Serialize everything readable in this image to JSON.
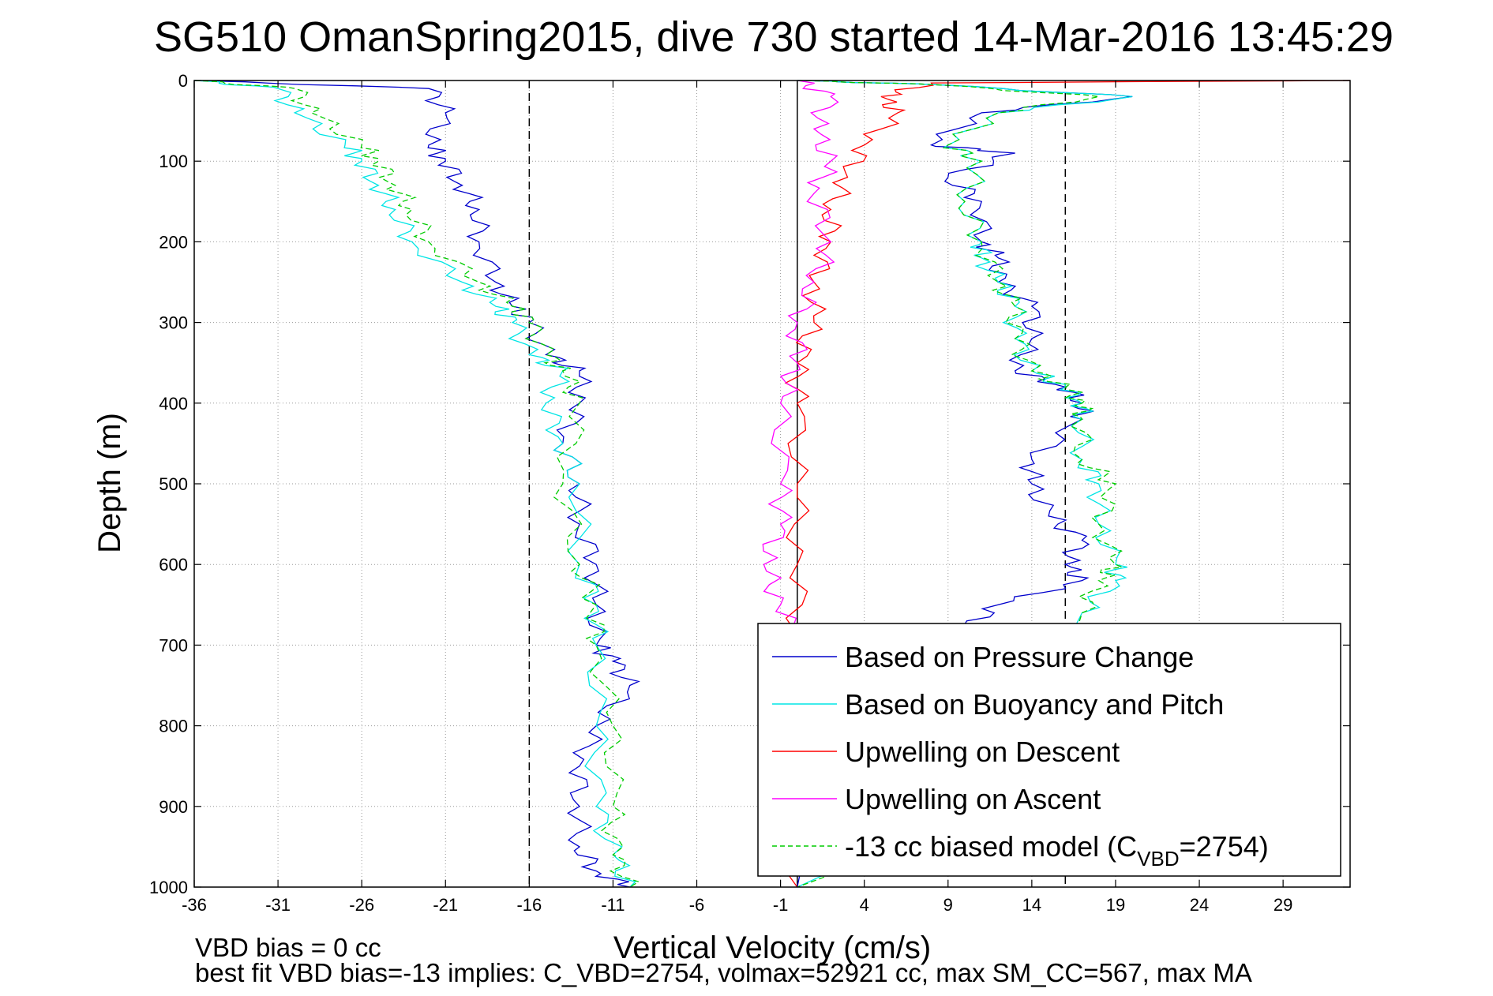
{
  "chart_data": {
    "type": "line",
    "title": "SG510 OmanSpring2015, dive 730 started 14-Mar-2016 13:45:29",
    "xlabel": "Vertical Velocity (cm/s)",
    "ylabel": "Depth (m)",
    "xlim": [
      -36,
      33
    ],
    "ylim": [
      0,
      1000
    ],
    "y_reversed": true,
    "grid": true,
    "xticks": [
      -36,
      -31,
      -26,
      -21,
      -16,
      -11,
      -6,
      -1,
      4,
      9,
      14,
      19,
      24,
      29
    ],
    "yticks": [
      0,
      100,
      200,
      300,
      400,
      500,
      600,
      700,
      800,
      900,
      1000
    ],
    "reference_lines": {
      "dashed_x": [
        -16,
        16
      ],
      "solid_x": [
        0
      ]
    },
    "legend_position": "bottom-right",
    "legend": [
      {
        "label": "Based on Pressure Change",
        "color": "#0000cc",
        "style": "solid"
      },
      {
        "label": "Based on Buoyancy and Pitch",
        "color": "#00e5e5",
        "style": "solid"
      },
      {
        "label": "Upwelling on Descent",
        "color": "#ff0000",
        "style": "solid"
      },
      {
        "label": "Upwelling on Ascent",
        "color": "#ff00ff",
        "style": "solid"
      },
      {
        "label_prefix": "-13 cc biased model (C",
        "label_sub": "VBD",
        "label_suffix": "=2754)",
        "color": "#00cc00",
        "style": "dashed"
      }
    ],
    "series": [
      {
        "name": "Based on Pressure Change",
        "color": "#0000cc",
        "branches": [
          {
            "x": [
              -36,
              -22,
              -21,
              -22,
              -21,
              -20,
              -19,
              -19,
              -18,
              -17,
              -16,
              -15,
              -13,
              -13,
              -14,
              -13,
              -13,
              -12,
              -12,
              -12,
              -11,
              -10,
              -12,
              -13,
              -13,
              -13,
              -12,
              -10
            ],
            "y": [
              0,
              10,
              40,
              80,
              100,
              130,
              160,
              200,
              250,
              280,
              300,
              340,
              360,
              400,
              450,
              500,
              550,
              600,
              650,
              700,
              720,
              750,
              800,
              850,
              900,
              950,
              980,
              1000
            ]
          },
          {
            "x": [
              0,
              8,
              20,
              11,
              8,
              13,
              9,
              11,
              11,
              12,
              12,
              14,
              14,
              13,
              16,
              17,
              17,
              14,
              14,
              15,
              17,
              16,
              17,
              12,
              10,
              5,
              0
            ],
            "y": [
              0,
              5,
              20,
              40,
              80,
              90,
              120,
              150,
              200,
              220,
              250,
              280,
              320,
              360,
              380,
              400,
              420,
              470,
              500,
              540,
              570,
              600,
              620,
              650,
              680,
              900,
              1000
            ]
          }
        ]
      },
      {
        "name": "Based on Buoyancy and Pitch",
        "color": "#00e5e5",
        "branches": [
          {
            "x": [
              -36,
              -31,
              -30,
              -27,
              -26,
              -25,
              -24,
              -23,
              -20,
              -18,
              -17,
              -16,
              -14,
              -15,
              -14,
              -13,
              -13,
              -12,
              -12,
              -12,
              -12,
              -11,
              -10
            ],
            "y": [
              0,
              10,
              40,
              80,
              100,
              130,
              160,
              200,
              250,
              280,
              300,
              340,
              360,
              400,
              450,
              500,
              600,
              650,
              700,
              800,
              900,
              960,
              1000
            ]
          },
          {
            "x": [
              0,
              8,
              20,
              12,
              9,
              11,
              10,
              11,
              11,
              12,
              13,
              13,
              14,
              16,
              17,
              17,
              17,
              18,
              18,
              19,
              19,
              17,
              10,
              0
            ],
            "y": [
              0,
              5,
              20,
              40,
              80,
              100,
              150,
              200,
              220,
              250,
              280,
              320,
              360,
              380,
              400,
              420,
              470,
              500,
              550,
              600,
              620,
              660,
              900,
              1000
            ]
          }
        ]
      },
      {
        "name": "Upwelling on Descent",
        "color": "#ff0000",
        "branches": [
          {
            "x": [
              33,
              8,
              5,
              6,
              4,
              3,
              2,
              2,
              1,
              1,
              0,
              0,
              0,
              0,
              0,
              -1,
              0,
              0
            ],
            "y": [
              0,
              3,
              20,
              40,
              80,
              120,
              160,
              200,
              250,
              300,
              350,
              400,
              500,
              600,
              700,
              800,
              900,
              1000
            ]
          }
        ]
      },
      {
        "name": "Upwelling on Ascent",
        "color": "#ff00ff",
        "branches": [
          {
            "x": [
              0,
              2,
              1,
              2,
              1,
              2,
              1,
              0,
              0,
              -1,
              -1,
              -1,
              -2,
              -1,
              0
            ],
            "y": [
              0,
              20,
              60,
              100,
              140,
              200,
              250,
              300,
              350,
              400,
              500,
              550,
              600,
              650,
              700
            ]
          }
        ]
      },
      {
        "name": "-13 cc biased model (C_VBD=2754)",
        "color": "#00cc00",
        "branches": [
          {
            "x": [
              -36,
              -30,
              -29,
              -26,
              -25,
              -24,
              -23,
              -22,
              -19,
              -17,
              -16,
              -15,
              -14,
              -13,
              -14,
              -13,
              -12,
              -12,
              -11,
              -11,
              -11,
              -10
            ],
            "y": [
              0,
              10,
              40,
              80,
              100,
              130,
              160,
              200,
              250,
              280,
              300,
              340,
              360,
              400,
              500,
              600,
              650,
              700,
              800,
              900,
              960,
              1000
            ]
          },
          {
            "x": [
              0,
              8,
              18,
              12,
              9,
              11,
              10,
              11,
              12,
              13,
              13,
              14,
              16,
              17,
              17,
              17,
              19,
              18,
              19,
              18,
              17,
              10,
              0
            ],
            "y": [
              0,
              5,
              20,
              40,
              80,
              100,
              150,
              200,
              250,
              280,
              320,
              360,
              380,
              400,
              420,
              470,
              500,
              550,
              600,
              620,
              660,
              900,
              1000
            ]
          }
        ]
      }
    ]
  },
  "footer": {
    "line1": "VBD bias = 0 cc",
    "line2": "best fit VBD bias=-13 implies: C_VBD=2754, volmax=52921 cc, max SM_CC=567, max MA"
  }
}
